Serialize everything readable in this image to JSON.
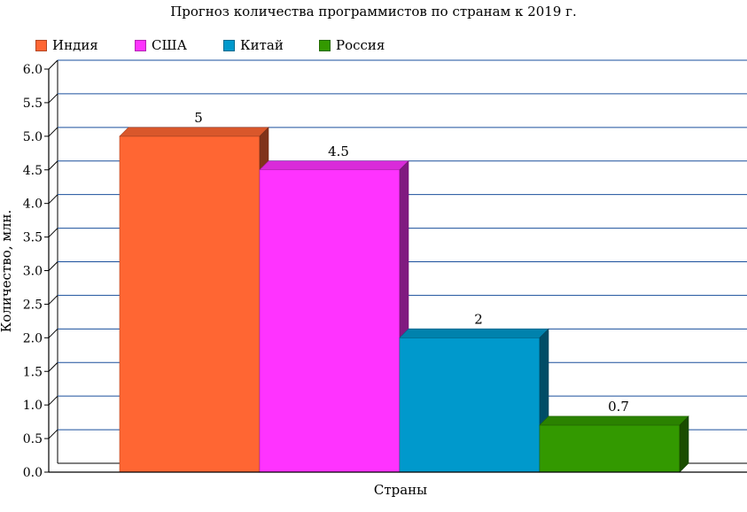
{
  "chart_data": {
    "type": "bar",
    "title": "Прогноз количества программистов по странам к 2019 г.",
    "xlabel": "Страны",
    "ylabel": "Количество, млн.",
    "ylim": [
      0,
      6
    ],
    "yticks": [
      "0.0",
      "0.5",
      "1.0",
      "1.5",
      "2.0",
      "2.5",
      "3.0",
      "3.5",
      "4.0",
      "4.5",
      "5.0",
      "5.5",
      "6.0"
    ],
    "grid": true,
    "legend_position": "top-left",
    "series": [
      {
        "name": "Индия",
        "value": 5,
        "label": "5",
        "color": "#ff6633"
      },
      {
        "name": "США",
        "value": 4.5,
        "label": "4.5",
        "color": "#ff33ff"
      },
      {
        "name": "Китай",
        "value": 2,
        "label": "2",
        "color": "#0099cc"
      },
      {
        "name": "Россия",
        "value": 0.7,
        "label": "0.7",
        "color": "#339900"
      }
    ]
  }
}
